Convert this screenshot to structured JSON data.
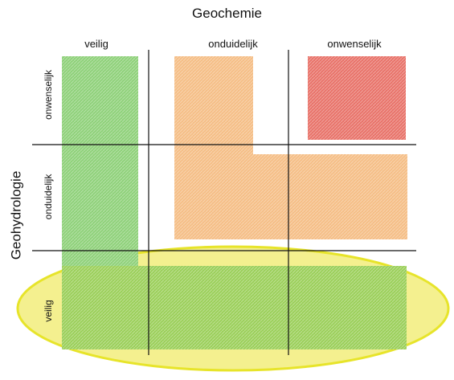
{
  "title": "Geochemie",
  "y_axis_title": "Geohydrologie",
  "columns": [
    "veilig",
    "onduidelijk",
    "onwenselijk"
  ],
  "rows": [
    "onwenselijk",
    "onduidelijk",
    "veilig"
  ],
  "colors": {
    "safe": "#8fd17a",
    "unclear": "#f5be86",
    "undesirable": "#e8736a",
    "highlight_fill": "#f4f08a",
    "highlight_stroke": "#e6e31f",
    "grid": "#111111"
  }
}
